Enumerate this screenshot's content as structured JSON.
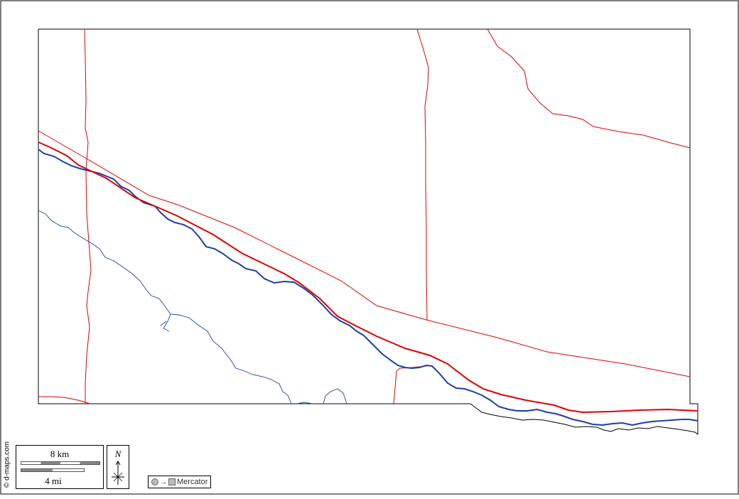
{
  "credit": "© d-maps.com",
  "scale": {
    "km_label": "8 km",
    "mi_label": "4 mi"
  },
  "compass": {
    "north_label": "N"
  },
  "projection": {
    "arrow": "→",
    "label": "Mercator"
  },
  "colors": {
    "roads": "#e00000",
    "rivers": "#1a3fa8",
    "outline": "#000000"
  },
  "layers": [
    "county-outline",
    "state-roads",
    "main-river",
    "tributary-creek",
    "highway"
  ]
}
